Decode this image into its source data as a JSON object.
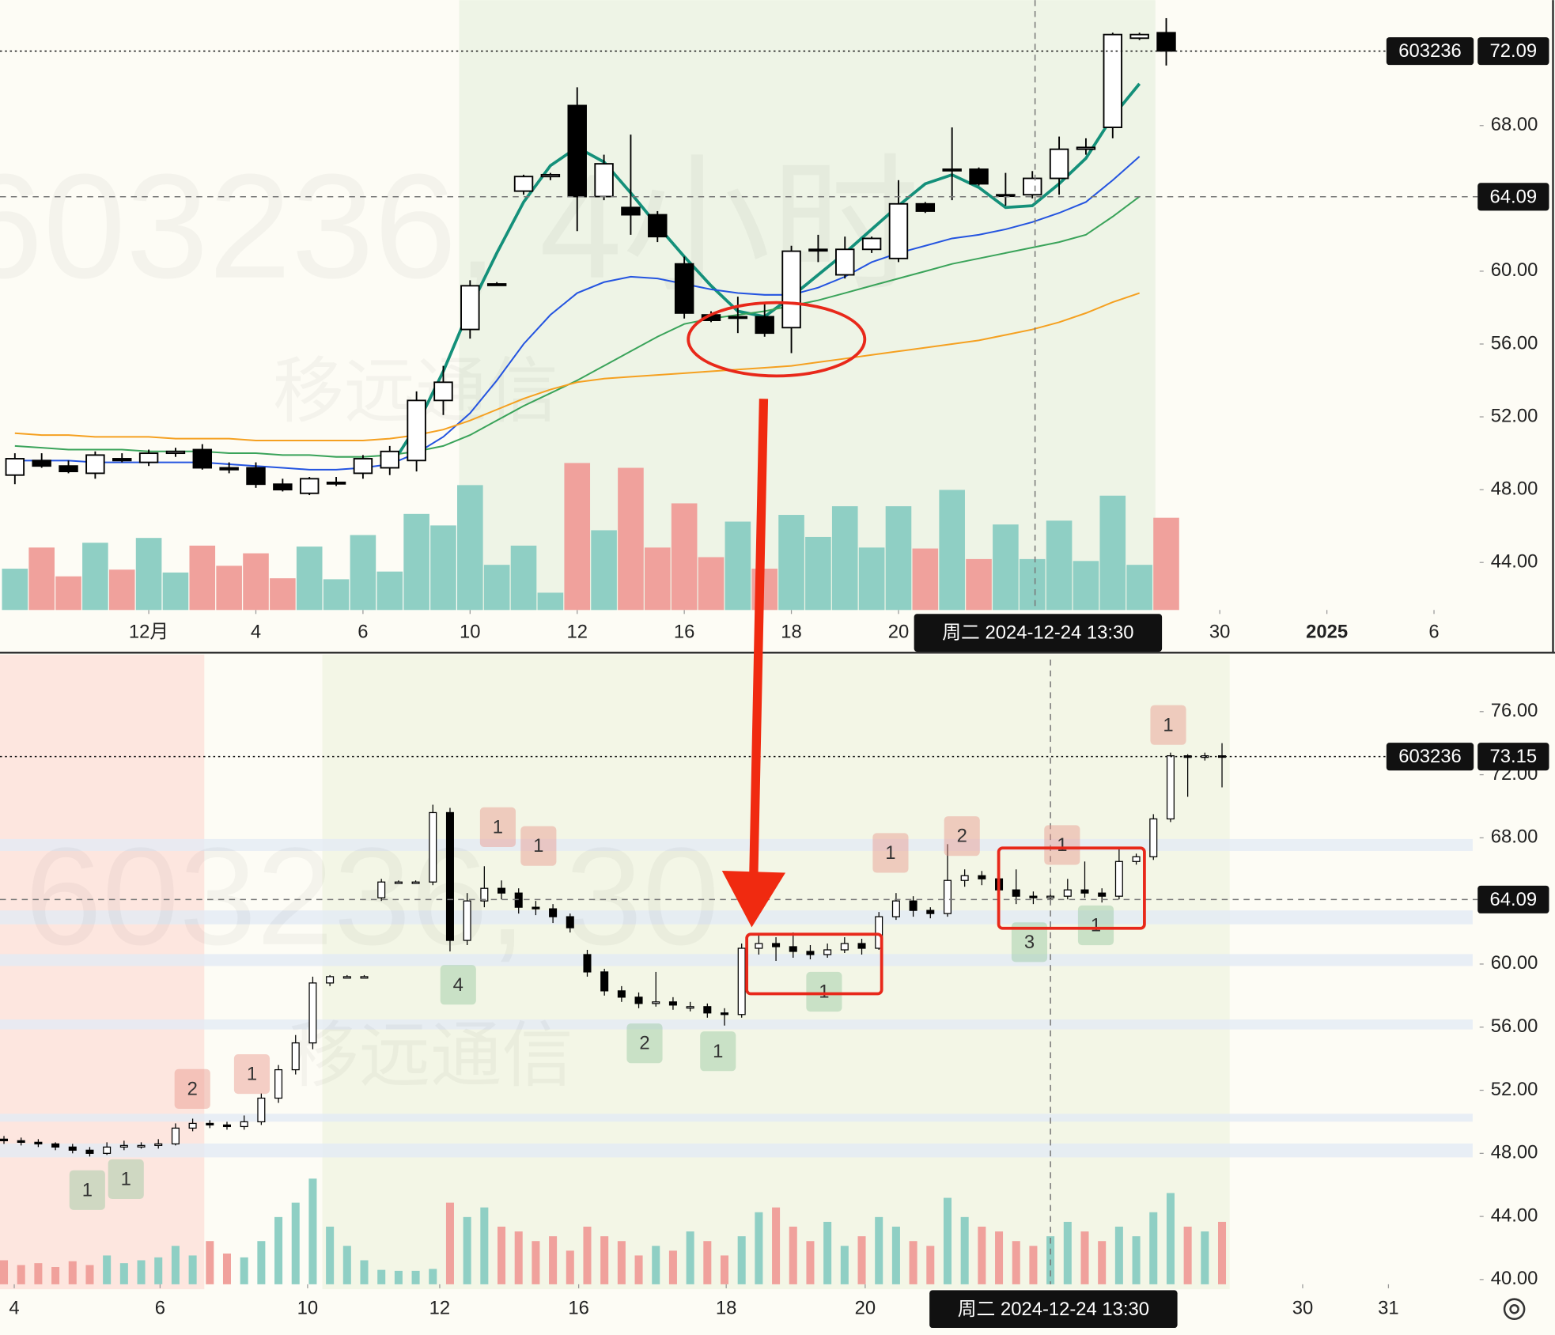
{
  "chart_data": [
    {
      "type": "candlestick",
      "title": "603236, 4小时",
      "name": "移远通信",
      "symbol": "603236",
      "x": [
        0,
        1,
        2,
        3,
        4,
        5,
        6,
        7,
        8,
        9,
        10,
        11,
        12,
        13,
        14,
        15,
        16,
        17,
        18,
        19,
        20,
        21,
        22,
        23,
        24,
        25,
        26,
        27,
        28,
        29,
        30,
        31,
        32,
        33,
        34,
        35,
        36,
        37,
        38,
        39,
        40,
        41,
        42,
        43
      ],
      "open": [
        48.8,
        49.6,
        49.3,
        48.9,
        49.7,
        49.5,
        50.0,
        50.2,
        49.2,
        49.2,
        48.3,
        47.8,
        48.4,
        48.9,
        49.2,
        49.6,
        52.9,
        56.8,
        59.3,
        64.4,
        65.2,
        69.1,
        64.1,
        63.5,
        63.1,
        60.4,
        57.6,
        57.5,
        57.5,
        56.9,
        61.2,
        59.8,
        61.2,
        60.7,
        63.7,
        65.6,
        65.6,
        64.2,
        64.2,
        65.1,
        66.7,
        67.9,
        72.8,
        73.1
      ],
      "high": [
        50.0,
        50.0,
        49.6,
        50.1,
        50.0,
        50.2,
        50.3,
        50.5,
        49.5,
        49.5,
        48.6,
        48.7,
        48.7,
        49.9,
        50.4,
        53.4,
        54.8,
        59.5,
        59.4,
        65.3,
        65.4,
        70.1,
        66.4,
        67.5,
        63.3,
        60.8,
        57.8,
        58.6,
        58.2,
        61.4,
        62.0,
        61.9,
        61.9,
        65.0,
        63.8,
        67.9,
        65.7,
        65.4,
        65.5,
        67.4,
        67.3,
        73.1,
        73.1,
        73.9
      ],
      "low": [
        48.3,
        49.2,
        48.9,
        48.6,
        49.5,
        49.3,
        49.8,
        49.1,
        48.9,
        48.1,
        47.9,
        47.7,
        48.2,
        48.6,
        48.8,
        49.0,
        52.1,
        56.3,
        59.2,
        64.2,
        65.0,
        62.2,
        63.9,
        62.0,
        61.6,
        57.4,
        57.2,
        56.6,
        56.4,
        55.5,
        60.5,
        59.6,
        61.0,
        60.5,
        63.2,
        63.9,
        64.7,
        63.6,
        64.0,
        64.2,
        66.4,
        67.3,
        72.7,
        71.3
      ],
      "close": [
        49.7,
        49.3,
        49.0,
        49.9,
        49.6,
        50.0,
        50.1,
        49.2,
        49.1,
        48.3,
        48.0,
        48.6,
        48.4,
        49.7,
        50.1,
        52.9,
        53.9,
        59.2,
        59.3,
        65.2,
        65.3,
        64.1,
        65.9,
        63.1,
        61.9,
        57.7,
        57.3,
        57.5,
        56.6,
        61.1,
        61.2,
        61.2,
        61.8,
        63.7,
        63.3,
        65.6,
        64.8,
        64.2,
        65.1,
        66.7,
        66.8,
        73.0,
        73.0,
        72.1
      ],
      "volume": [
        43,
        65,
        35,
        70,
        42,
        75,
        39,
        67,
        46,
        59,
        33,
        66,
        32,
        78,
        40,
        100,
        88,
        130,
        47,
        67,
        18,
        153,
        83,
        148,
        65,
        111,
        55,
        92,
        43,
        99,
        76,
        108,
        65,
        108,
        64,
        125,
        53,
        89,
        53,
        93,
        51,
        119,
        47,
        96
      ],
      "volume_lim": [
        0,
        160
      ],
      "up_color": "#ffffff",
      "down_color": "#000000",
      "volume_up_color": "#8fcfc4",
      "volume_down_color": "#f0a19c",
      "lines": [
        {
          "color": "#14907a",
          "values": [
            null,
            null,
            null,
            null,
            null,
            null,
            null,
            null,
            null,
            null,
            null,
            null,
            null,
            null,
            49.2,
            51.5,
            54.5,
            58.0,
            61.0,
            63.8,
            65.8,
            66.8,
            66.0,
            64.3,
            62.5,
            60.8,
            59.2,
            57.8,
            57.5,
            58.6,
            59.8,
            61.0,
            62.3,
            63.6,
            64.8,
            65.3,
            64.6,
            63.5,
            63.6,
            64.8,
            66.2,
            68.5,
            70.3,
            null
          ]
        },
        {
          "color": "#2454e0",
          "values": [
            49.6,
            49.6,
            49.6,
            49.5,
            49.5,
            49.5,
            49.5,
            49.5,
            49.4,
            49.3,
            49.2,
            49.1,
            49.1,
            49.2,
            49.4,
            50.0,
            50.9,
            52.2,
            54.0,
            56.0,
            57.6,
            58.8,
            59.4,
            59.7,
            59.6,
            59.3,
            59.0,
            58.8,
            58.7,
            58.7,
            59.1,
            59.7,
            60.5,
            61.0,
            61.4,
            61.8,
            62.0,
            62.3,
            62.7,
            63.2,
            63.8,
            65.0,
            66.3,
            null
          ]
        },
        {
          "color": "#3aa35a",
          "values": [
            50.4,
            50.3,
            50.2,
            50.2,
            50.2,
            50.1,
            50.1,
            50.1,
            50.0,
            50.0,
            49.9,
            49.9,
            49.8,
            49.8,
            49.9,
            50.1,
            50.4,
            51.0,
            51.8,
            52.6,
            53.3,
            54.0,
            54.8,
            55.6,
            56.4,
            57.1,
            57.4,
            57.6,
            57.8,
            58.1,
            58.4,
            58.8,
            59.2,
            59.6,
            60.0,
            60.4,
            60.7,
            61.0,
            61.3,
            61.6,
            62.0,
            63.0,
            64.1,
            null
          ]
        },
        {
          "color": "#f5a020",
          "values": [
            51.1,
            51.0,
            51.0,
            50.9,
            50.9,
            50.9,
            50.8,
            50.8,
            50.8,
            50.7,
            50.7,
            50.7,
            50.7,
            50.7,
            50.8,
            51.0,
            51.3,
            51.8,
            52.4,
            53.0,
            53.5,
            53.9,
            54.1,
            54.2,
            54.3,
            54.4,
            54.5,
            54.6,
            54.7,
            54.8,
            55.0,
            55.2,
            55.4,
            55.6,
            55.8,
            56.0,
            56.2,
            56.5,
            56.8,
            57.2,
            57.7,
            58.3,
            58.8,
            null
          ]
        }
      ],
      "xlim": [
        -0.556,
        54.63
      ],
      "xticks": [
        {
          "value": 5,
          "label": "12月"
        },
        {
          "value": 9,
          "label": "4"
        },
        {
          "value": 13,
          "label": "6"
        },
        {
          "value": 17,
          "label": "10"
        },
        {
          "value": 21,
          "label": "12"
        },
        {
          "value": 25,
          "label": "16"
        },
        {
          "value": 29,
          "label": "18"
        },
        {
          "value": 33,
          "label": "20"
        },
        {
          "value": 45,
          "label": "30"
        },
        {
          "value": 49,
          "label": "2025"
        },
        {
          "value": 53,
          "label": "6"
        }
      ],
      "ylim": [
        41.39,
        74.89
      ],
      "yticks": [
        {
          "value": 44,
          "label": "44.00"
        },
        {
          "value": 48,
          "label": "48.00"
        },
        {
          "value": 52,
          "label": "52.00"
        },
        {
          "value": 56,
          "label": "56.00"
        },
        {
          "value": 60,
          "label": "60.00"
        },
        {
          "value": 68,
          "label": "68.00"
        }
      ],
      "last_price": 72.09,
      "crosshair": {
        "x": 38.1,
        "price": 64.09,
        "label": "周二 2024-12-24  13:30"
      }
    },
    {
      "type": "candlestick",
      "title": "603236, 30",
      "name": "移远通信",
      "symbol": "603236",
      "x": [
        0,
        1,
        2,
        3,
        4,
        5,
        6,
        7,
        8,
        9,
        10,
        11,
        12,
        13,
        14,
        15,
        16,
        17,
        18,
        19,
        20,
        21,
        22,
        23,
        24,
        25,
        26,
        27,
        28,
        29,
        30,
        31,
        32,
        33,
        34,
        35,
        36,
        37,
        38,
        39,
        40,
        41,
        42,
        43,
        44,
        45,
        46,
        47,
        48,
        49,
        50,
        51,
        52,
        53,
        54,
        55,
        56,
        57,
        58,
        59,
        60,
        61,
        62,
        63,
        64,
        65,
        66,
        67,
        68,
        69,
        70,
        71
      ],
      "open": [
        48.9,
        48.8,
        48.7,
        48.6,
        48.4,
        48.2,
        48.0,
        48.4,
        48.5,
        48.5,
        48.6,
        49.6,
        49.9,
        49.8,
        49.7,
        50.0,
        51.5,
        53.3,
        55.0,
        58.8,
        59.2,
        59.2,
        64.2,
        65.2,
        65.2,
        65.2,
        69.6,
        61.5,
        64.0,
        64.8,
        64.5,
        63.6,
        63.5,
        63.0,
        60.6,
        59.5,
        58.3,
        57.9,
        57.5,
        57.6,
        57.3,
        57.3,
        56.9,
        56.8,
        61.0,
        61.3,
        61.1,
        60.8,
        60.6,
        60.9,
        61.3,
        61.0,
        63.0,
        64.0,
        63.4,
        63.2,
        65.3,
        65.6,
        65.4,
        64.7,
        64.3,
        64.2,
        64.3,
        64.7,
        64.5,
        64.3,
        66.5,
        66.8,
        69.2,
        73.2,
        73.1,
        73.2
      ],
      "high": [
        49.1,
        49.0,
        48.9,
        48.7,
        48.6,
        48.4,
        48.7,
        48.8,
        48.7,
        48.9,
        49.9,
        50.2,
        50.1,
        50.0,
        50.4,
        51.8,
        53.6,
        55.5,
        59.2,
        59.3,
        59.3,
        59.3,
        65.4,
        65.3,
        65.3,
        70.1,
        69.9,
        64.5,
        66.2,
        65.3,
        64.8,
        64.0,
        63.8,
        63.2,
        60.9,
        59.7,
        58.6,
        58.2,
        59.5,
        57.9,
        57.6,
        57.5,
        57.2,
        61.3,
        61.8,
        61.7,
        62.0,
        61.2,
        61.3,
        61.7,
        61.6,
        63.3,
        64.5,
        64.3,
        63.6,
        67.6,
        66.0,
        65.9,
        65.6,
        66.0,
        64.6,
        64.6,
        65.4,
        66.5,
        64.8,
        67.4,
        67.0,
        69.5,
        73.4,
        73.3,
        73.4,
        74.0
      ],
      "low": [
        48.6,
        48.5,
        48.4,
        48.2,
        48.0,
        47.8,
        47.9,
        48.2,
        48.3,
        48.3,
        48.5,
        49.4,
        49.6,
        49.5,
        49.5,
        49.8,
        51.2,
        53.0,
        54.6,
        58.6,
        59.1,
        59.1,
        64.0,
        65.1,
        65.1,
        65.0,
        60.8,
        61.2,
        63.6,
        64.1,
        63.2,
        63.1,
        62.6,
        62.0,
        59.2,
        58.0,
        57.6,
        57.2,
        57.3,
        57.1,
        57.0,
        56.6,
        56.1,
        56.6,
        60.6,
        60.2,
        60.4,
        60.3,
        60.4,
        60.7,
        60.6,
        60.9,
        62.8,
        63.0,
        62.9,
        63.0,
        64.9,
        65.0,
        64.3,
        63.8,
        63.8,
        63.8,
        64.1,
        64.2,
        63.9,
        64.1,
        66.3,
        66.6,
        69.0,
        70.6,
        72.9,
        71.2
      ],
      "close": [
        48.8,
        48.7,
        48.6,
        48.4,
        48.2,
        48.0,
        48.4,
        48.5,
        48.5,
        48.6,
        49.6,
        49.9,
        49.8,
        49.7,
        50.0,
        51.5,
        53.3,
        55.0,
        58.8,
        59.2,
        59.2,
        59.2,
        65.2,
        65.2,
        65.2,
        69.6,
        61.5,
        64.0,
        64.8,
        64.5,
        63.6,
        63.5,
        63.0,
        62.3,
        59.5,
        58.3,
        57.9,
        57.5,
        57.6,
        57.4,
        57.3,
        56.9,
        56.8,
        61.0,
        61.3,
        61.1,
        60.8,
        60.6,
        60.9,
        61.3,
        61.0,
        63.0,
        64.0,
        63.4,
        63.2,
        65.3,
        65.6,
        65.4,
        64.7,
        64.3,
        64.2,
        64.3,
        64.7,
        64.5,
        64.3,
        66.5,
        66.8,
        69.2,
        73.2,
        73.1,
        73.2,
        73.15
      ],
      "volume": [
        25,
        20,
        22,
        18,
        24,
        20,
        30,
        22,
        25,
        28,
        40,
        30,
        45,
        32,
        28,
        45,
        70,
        85,
        110,
        60,
        40,
        25,
        15,
        14,
        14,
        16,
        85,
        70,
        80,
        60,
        55,
        45,
        50,
        35,
        60,
        50,
        45,
        30,
        40,
        35,
        55,
        45,
        30,
        50,
        75,
        80,
        60,
        45,
        65,
        40,
        50,
        70,
        60,
        45,
        40,
        90,
        70,
        60,
        55,
        45,
        40,
        50,
        65,
        55,
        45,
        60,
        50,
        75,
        95,
        60,
        55,
        65
      ],
      "volume_lim": [
        0,
        160
      ],
      "up_color": "#ffffff",
      "down_color": "#000000",
      "volume_up_color": "#8fcfc4",
      "volume_down_color": "#f0a19c",
      "xlim": [
        -0.231,
        85.9
      ],
      "xticks": [
        {
          "value": 0.6,
          "label": "4"
        },
        {
          "value": 9.1,
          "label": "6"
        },
        {
          "value": 17.7,
          "label": "10"
        },
        {
          "value": 25.4,
          "label": "12"
        },
        {
          "value": 33.5,
          "label": "16"
        },
        {
          "value": 42.1,
          "label": "18"
        },
        {
          "value": 50.2,
          "label": "20"
        },
        {
          "value": 75.7,
          "label": "30"
        },
        {
          "value": 80.7,
          "label": "31"
        }
      ],
      "ylim": [
        39.7,
        79.3
      ],
      "yticks": [
        {
          "value": 40,
          "label": "40.00"
        },
        {
          "value": 44,
          "label": "44.00"
        },
        {
          "value": 48,
          "label": "48.00"
        },
        {
          "value": 52,
          "label": "52.00"
        },
        {
          "value": 56,
          "label": "56.00"
        },
        {
          "value": 60,
          "label": "60.00"
        },
        {
          "value": 68,
          "label": "68.00"
        },
        {
          "value": 72,
          "label": "72.00"
        },
        {
          "value": 76,
          "label": "76.00"
        }
      ],
      "last_price": 73.15,
      "crosshair": {
        "x": 61,
        "price": 64.09,
        "label": "周二 2024-12-24  13:30"
      },
      "annotations": [
        "1",
        "1",
        "2",
        "1",
        "4",
        "1",
        "1",
        "2",
        "1",
        "1",
        "1",
        "2",
        "3",
        "1",
        "1",
        "1"
      ]
    }
  ]
}
